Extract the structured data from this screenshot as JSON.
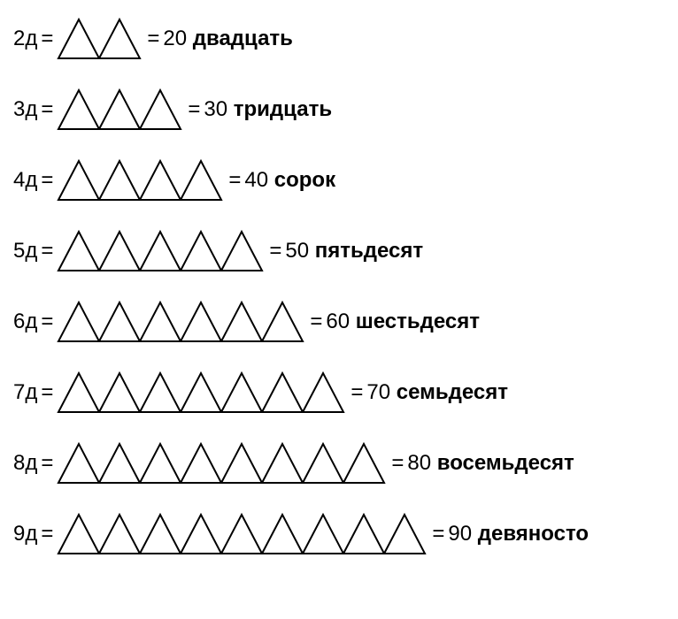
{
  "rows": [
    {
      "prefix": "2д",
      "triangle_count": 2,
      "number": "20",
      "word": "двадцать"
    },
    {
      "prefix": "3д",
      "triangle_count": 3,
      "number": "30",
      "word": "тридцать"
    },
    {
      "prefix": "4д",
      "triangle_count": 4,
      "number": "40",
      "word": "сорок"
    },
    {
      "prefix": "5д",
      "triangle_count": 5,
      "number": "50",
      "word": "пятьдесят"
    },
    {
      "prefix": "6д",
      "triangle_count": 6,
      "number": "60",
      "word": "шестьдесят"
    },
    {
      "prefix": "7д",
      "triangle_count": 7,
      "number": "70",
      "word": "семьдесят"
    },
    {
      "prefix": "8д",
      "triangle_count": 8,
      "number": "80",
      "word": "восемьдесят"
    },
    {
      "prefix": "9д",
      "triangle_count": 9,
      "number": "90",
      "word": "девяносто"
    }
  ],
  "styling": {
    "triangle": {
      "base_width": 46,
      "height": 44,
      "stroke_color": "#000000",
      "stroke_width": 2,
      "fill": "none"
    },
    "font_size": 24,
    "text_color": "#000000",
    "background_color": "#ffffff",
    "row_spacing": 32,
    "equals_sign": "="
  }
}
